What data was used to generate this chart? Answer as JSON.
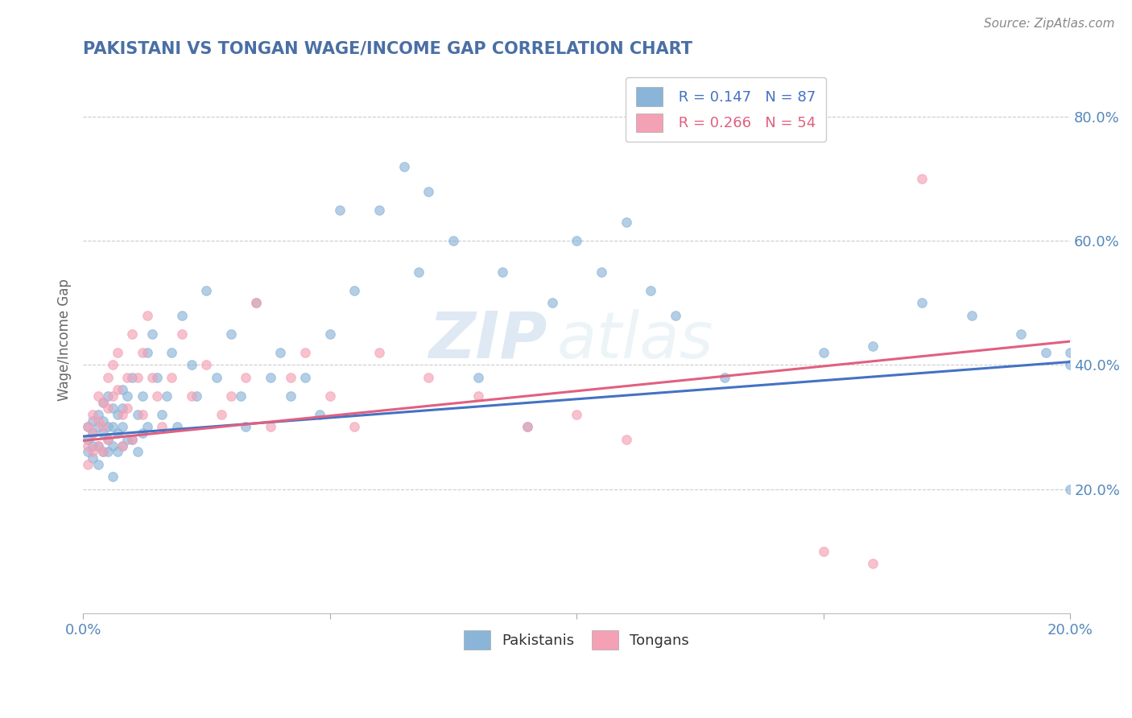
{
  "title": "PAKISTANI VS TONGAN WAGE/INCOME GAP CORRELATION CHART",
  "source_text": "Source: ZipAtlas.com",
  "ylabel": "Wage/Income Gap",
  "xlim": [
    0.0,
    0.2
  ],
  "ylim": [
    0.0,
    0.88
  ],
  "xtick_values": [
    0.0,
    0.05,
    0.1,
    0.15,
    0.2
  ],
  "ytick_values": [
    0.2,
    0.4,
    0.6,
    0.8
  ],
  "ytick_labels": [
    "20.0%",
    "40.0%",
    "60.0%",
    "80.0%"
  ],
  "pakistani_color": "#8ab4d8",
  "tongan_color": "#f4a0b5",
  "pakistani_line_color": "#4472c4",
  "tongan_line_color": "#e06080",
  "legend_r1": "R = 0.147",
  "legend_n1": "N = 87",
  "legend_r2": "R = 0.266",
  "legend_n2": "N = 54",
  "legend_label1": "Pakistanis",
  "legend_label2": "Tongans",
  "pakistanis_x": [
    0.001,
    0.001,
    0.001,
    0.002,
    0.002,
    0.002,
    0.002,
    0.003,
    0.003,
    0.003,
    0.003,
    0.004,
    0.004,
    0.004,
    0.004,
    0.005,
    0.005,
    0.005,
    0.005,
    0.006,
    0.006,
    0.006,
    0.006,
    0.007,
    0.007,
    0.007,
    0.008,
    0.008,
    0.008,
    0.008,
    0.009,
    0.009,
    0.01,
    0.01,
    0.011,
    0.011,
    0.012,
    0.012,
    0.013,
    0.013,
    0.014,
    0.015,
    0.016,
    0.017,
    0.018,
    0.019,
    0.02,
    0.022,
    0.023,
    0.025,
    0.027,
    0.03,
    0.032,
    0.033,
    0.035,
    0.038,
    0.04,
    0.042,
    0.045,
    0.048,
    0.05,
    0.052,
    0.055,
    0.06,
    0.065,
    0.068,
    0.07,
    0.075,
    0.08,
    0.085,
    0.09,
    0.095,
    0.1,
    0.105,
    0.11,
    0.115,
    0.12,
    0.13,
    0.15,
    0.16,
    0.17,
    0.18,
    0.19,
    0.195,
    0.2,
    0.2,
    0.2
  ],
  "pakistanis_y": [
    0.3,
    0.28,
    0.26,
    0.31,
    0.29,
    0.27,
    0.25,
    0.32,
    0.3,
    0.27,
    0.24,
    0.31,
    0.29,
    0.26,
    0.34,
    0.3,
    0.28,
    0.26,
    0.35,
    0.33,
    0.3,
    0.27,
    0.22,
    0.32,
    0.29,
    0.26,
    0.36,
    0.33,
    0.3,
    0.27,
    0.35,
    0.28,
    0.38,
    0.28,
    0.32,
    0.26,
    0.35,
    0.29,
    0.42,
    0.3,
    0.45,
    0.38,
    0.32,
    0.35,
    0.42,
    0.3,
    0.48,
    0.4,
    0.35,
    0.52,
    0.38,
    0.45,
    0.35,
    0.3,
    0.5,
    0.38,
    0.42,
    0.35,
    0.38,
    0.32,
    0.45,
    0.65,
    0.52,
    0.65,
    0.72,
    0.55,
    0.68,
    0.6,
    0.38,
    0.55,
    0.3,
    0.5,
    0.6,
    0.55,
    0.63,
    0.52,
    0.48,
    0.38,
    0.42,
    0.43,
    0.5,
    0.48,
    0.45,
    0.42,
    0.42,
    0.4,
    0.2
  ],
  "tongans_x": [
    0.001,
    0.001,
    0.001,
    0.002,
    0.002,
    0.002,
    0.003,
    0.003,
    0.003,
    0.004,
    0.004,
    0.004,
    0.005,
    0.005,
    0.005,
    0.006,
    0.006,
    0.007,
    0.007,
    0.008,
    0.008,
    0.009,
    0.009,
    0.01,
    0.01,
    0.011,
    0.012,
    0.012,
    0.013,
    0.014,
    0.015,
    0.016,
    0.018,
    0.02,
    0.022,
    0.025,
    0.028,
    0.03,
    0.033,
    0.035,
    0.038,
    0.042,
    0.045,
    0.05,
    0.055,
    0.06,
    0.07,
    0.08,
    0.09,
    0.1,
    0.11,
    0.15,
    0.16,
    0.17
  ],
  "tongans_y": [
    0.3,
    0.27,
    0.24,
    0.32,
    0.29,
    0.26,
    0.35,
    0.31,
    0.27,
    0.34,
    0.3,
    0.26,
    0.38,
    0.33,
    0.28,
    0.4,
    0.35,
    0.42,
    0.36,
    0.32,
    0.27,
    0.38,
    0.33,
    0.28,
    0.45,
    0.38,
    0.32,
    0.42,
    0.48,
    0.38,
    0.35,
    0.3,
    0.38,
    0.45,
    0.35,
    0.4,
    0.32,
    0.35,
    0.38,
    0.5,
    0.3,
    0.38,
    0.42,
    0.35,
    0.3,
    0.42,
    0.38,
    0.35,
    0.3,
    0.32,
    0.28,
    0.1,
    0.08,
    0.7
  ],
  "blue_line_x0": 0.0,
  "blue_line_y0": 0.285,
  "blue_line_x1": 0.2,
  "blue_line_y1": 0.405,
  "pink_line_x0": 0.0,
  "pink_line_y0": 0.278,
  "pink_line_x1": 0.2,
  "pink_line_y1": 0.438,
  "watermark_zip": "ZIP",
  "watermark_atlas": "atlas",
  "background_color": "#ffffff",
  "grid_color": "#cccccc",
  "title_color": "#4a6fa5",
  "ylabel_color": "#666666",
  "tick_color": "#5588bb",
  "source_color": "#888888"
}
